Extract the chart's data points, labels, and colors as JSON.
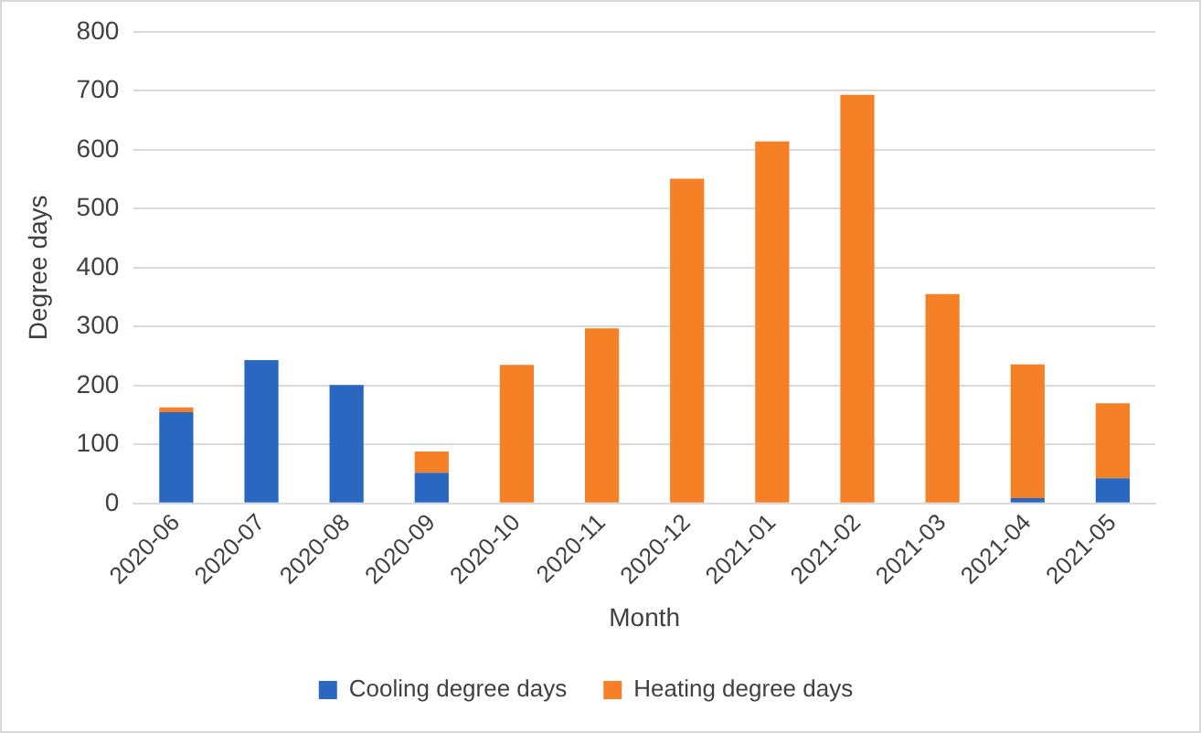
{
  "chart_data": {
    "type": "bar",
    "stacked": true,
    "xlabel": "Month",
    "ylabel": "Degree days",
    "categories": [
      "2020-06",
      "2020-07",
      "2020-08",
      "2020-09",
      "2020-10",
      "2020-11",
      "2020-12",
      "2021-01",
      "2021-02",
      "2021-03",
      "2021-04",
      "2021-05"
    ],
    "series": [
      {
        "name": "Cooling degree days",
        "color": "#2a67c0",
        "values": [
          155,
          243,
          201,
          52,
          0,
          0,
          0,
          0,
          0,
          0,
          9,
          43
        ]
      },
      {
        "name": "Heating degree days",
        "color": "#f58025",
        "values": [
          8,
          0,
          0,
          36,
          235,
          297,
          551,
          614,
          693,
          355,
          227,
          127
        ]
      }
    ],
    "ylim": [
      0,
      800
    ],
    "yticks": [
      0,
      100,
      200,
      300,
      400,
      500,
      600,
      700,
      800
    ],
    "grid": "y",
    "legend": "bottom"
  }
}
